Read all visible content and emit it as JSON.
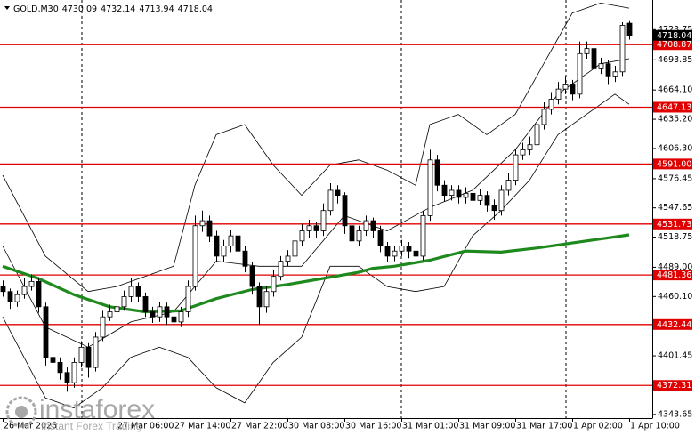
{
  "chart_data": {
    "type": "candlestick",
    "title": "GOLD,M30",
    "categories": [
      "26 Mar 2025",
      null,
      null,
      null,
      null,
      null,
      null,
      null,
      null,
      null,
      null,
      null,
      null,
      null,
      null,
      null,
      "27 Mar 06:00",
      null,
      null,
      null,
      null,
      null,
      null,
      null,
      "27 Mar 14:00",
      null,
      null,
      null,
      null,
      null,
      null,
      null,
      "27 Mar 22:00",
      null,
      null,
      null,
      null,
      null,
      null,
      null,
      "30 Mar 08:00",
      null,
      null,
      null,
      null,
      null,
      null,
      null,
      "30 Mar 16:00",
      null,
      null,
      null,
      null,
      null,
      null,
      null,
      "31 Mar 01:00",
      null,
      null,
      null,
      null,
      null,
      null,
      null,
      "31 Mar 09:00",
      null,
      null,
      null,
      null,
      null,
      null,
      null,
      "31 Mar 17:00",
      null,
      null,
      null,
      null,
      null,
      null,
      null,
      "1 Apr 02:00",
      null,
      null,
      null,
      null,
      null,
      null,
      null,
      "1 Apr 10:00"
    ],
    "open": [
      4470,
      4465,
      4455,
      4462,
      4470,
      4475,
      4450,
      4400,
      4395,
      4385,
      4375,
      4395,
      4410,
      4390,
      4420,
      4440,
      4445,
      4450,
      4460,
      4470,
      4460,
      4445,
      4440,
      4450,
      4440,
      4435,
      4445,
      4470,
      4530,
      4535,
      4520,
      4500,
      4510,
      4520,
      4505,
      4490,
      4470,
      4450,
      4465,
      4480,
      4495,
      4500,
      4515,
      4525,
      4530,
      4525,
      4545,
      4565,
      4560,
      4530,
      4515,
      4525,
      4535,
      4525,
      4510,
      4500,
      4505,
      4510,
      4505,
      4500,
      4540,
      4595,
      4570,
      4560,
      4565,
      4558,
      4562,
      4555,
      4560,
      4550,
      4545,
      4565,
      4575,
      4600,
      4605,
      4610,
      4630,
      4645,
      4655,
      4665,
      4670,
      4660,
      4700,
      4705,
      4685,
      4690,
      4678,
      4682,
      4730.09
    ],
    "high": [
      4476,
      4468,
      4466,
      4478,
      4482,
      4478,
      4454,
      4408,
      4400,
      4390,
      4400,
      4416,
      4414,
      4425,
      4446,
      4452,
      4458,
      4466,
      4478,
      4474,
      4464,
      4450,
      4455,
      4454,
      4446,
      4450,
      4476,
      4540,
      4545,
      4540,
      4525,
      4516,
      4526,
      4524,
      4510,
      4494,
      4474,
      4470,
      4486,
      4500,
      4506,
      4520,
      4532,
      4536,
      4534,
      4552,
      4572,
      4570,
      4563,
      4535,
      4530,
      4540,
      4538,
      4530,
      4514,
      4510,
      4516,
      4514,
      4510,
      4545,
      4605,
      4600,
      4575,
      4570,
      4570,
      4568,
      4566,
      4566,
      4564,
      4556,
      4570,
      4582,
      4606,
      4612,
      4618,
      4636,
      4652,
      4662,
      4672,
      4678,
      4674,
      4712,
      4712,
      4708,
      4696,
      4694,
      4688,
      4731,
      4732.14
    ],
    "low": [
      4460,
      4448,
      4450,
      4458,
      4466,
      4444,
      4392,
      4388,
      4378,
      4366,
      4370,
      4390,
      4380,
      4386,
      4416,
      4436,
      4440,
      4446,
      4455,
      4455,
      4440,
      4434,
      4435,
      4432,
      4428,
      4430,
      4440,
      4466,
      4524,
      4514,
      4494,
      4494,
      4504,
      4498,
      4484,
      4462,
      4432,
      4444,
      4460,
      4476,
      4490,
      4496,
      4510,
      4518,
      4518,
      4520,
      4540,
      4552,
      4522,
      4508,
      4510,
      4520,
      4518,
      4504,
      4494,
      4495,
      4500,
      4498,
      4494,
      4496,
      4535,
      4564,
      4554,
      4555,
      4552,
      4552,
      4549,
      4550,
      4544,
      4536,
      4540,
      4560,
      4570,
      4595,
      4600,
      4605,
      4625,
      4640,
      4650,
      4660,
      4654,
      4656,
      4695,
      4678,
      4680,
      4670,
      4672,
      4678,
      4713.94
    ],
    "close": [
      4465,
      4455,
      4462,
      4470,
      4475,
      4450,
      4400,
      4395,
      4385,
      4375,
      4395,
      4410,
      4390,
      4420,
      4440,
      4445,
      4450,
      4460,
      4470,
      4460,
      4445,
      4440,
      4450,
      4440,
      4435,
      4445,
      4470,
      4530,
      4535,
      4520,
      4500,
      4510,
      4520,
      4505,
      4490,
      4470,
      4450,
      4465,
      4480,
      4495,
      4500,
      4515,
      4525,
      4530,
      4525,
      4545,
      4565,
      4560,
      4530,
      4515,
      4525,
      4535,
      4525,
      4510,
      4500,
      4505,
      4510,
      4505,
      4500,
      4540,
      4595,
      4570,
      4560,
      4565,
      4558,
      4562,
      4555,
      4560,
      4550,
      4545,
      4565,
      4575,
      4600,
      4605,
      4610,
      4630,
      4645,
      4655,
      4665,
      4670,
      4660,
      4700,
      4705,
      4685,
      4690,
      4678,
      4682,
      4728,
      4718.04
    ],
    "candle_color": "#000000",
    "up_fill": "#ffffff",
    "down_fill": "#000000",
    "ylim": [
      4340,
      4753
    ],
    "yticks": [
      4723.75,
      4693.85,
      {
        "value": 4664.1,
        "label": "4664.10"
      },
      {
        "value": 4635.2,
        "label": "4635.20"
      },
      {
        "value": 4606.3,
        "label": "4606.30"
      },
      4576.45,
      4547.65,
      4518.75,
      {
        "value": 4489,
        "label": "4489.00"
      },
      {
        "value": 4460.1,
        "label": "4460.10"
      },
      4401.45,
      4343.65
    ],
    "levels": [
      4708.87,
      4647.13,
      {
        "value": 4591,
        "label": "4591.00"
      },
      4531.73,
      4481.36,
      4432.44,
      4372.31
    ],
    "level_color": "#e00000",
    "price_box_color": "#000000",
    "ma": {
      "color": "#1e8a1e",
      "x": [
        0,
        5,
        10,
        15,
        20,
        25,
        30,
        35,
        40,
        45,
        50,
        52,
        55,
        60,
        65,
        70,
        75,
        80,
        85,
        88
      ],
      "values": [
        4490,
        4478,
        4462,
        4450,
        4445,
        4446,
        4458,
        4467,
        4472,
        4478,
        4484,
        4488,
        4490,
        4496,
        4505,
        4504,
        4508,
        4513,
        4518,
        4521
      ]
    },
    "bands": [
      {
        "color": "#000000",
        "x": [
          0,
          6,
          12,
          16,
          20,
          24,
          27,
          30,
          34,
          38,
          42,
          46,
          50,
          54,
          58,
          60,
          64,
          68,
          72,
          76,
          80,
          84,
          88
        ],
        "values": [
          4580,
          4500,
          4465,
          4470,
          4480,
          4490,
          4570,
          4620,
          4630,
          4590,
          4560,
          4590,
          4595,
          4585,
          4570,
          4630,
          4640,
          4620,
          4640,
          4690,
          4740,
          4750,
          4745
        ]
      },
      {
        "color": "#000000",
        "x": [
          0,
          6,
          12,
          18,
          24,
          30,
          36,
          42,
          48,
          54,
          60,
          66,
          72,
          78,
          84,
          88
        ],
        "values": [
          4510,
          4430,
          4410,
          4435,
          4445,
          4495,
          4490,
          4490,
          4540,
          4525,
          4548,
          4565,
          4605,
          4660,
          4690,
          4695
        ]
      },
      {
        "color": "#000000",
        "x": [
          0,
          6,
          10,
          14,
          18,
          22,
          26,
          30,
          34,
          38,
          42,
          46,
          50,
          54,
          58,
          62,
          66,
          70,
          74,
          78,
          82,
          86,
          88
        ],
        "values": [
          4440,
          4360,
          4350,
          4370,
          4400,
          4410,
          4400,
          4370,
          4355,
          4395,
          4420,
          4490,
          4490,
          4470,
          4465,
          4470,
          4520,
          4545,
          4575,
          4620,
          4640,
          4660,
          4650
        ]
      }
    ]
  },
  "watermark": {
    "brand": "instaforex",
    "tagline": "Instant Forex Trading"
  }
}
